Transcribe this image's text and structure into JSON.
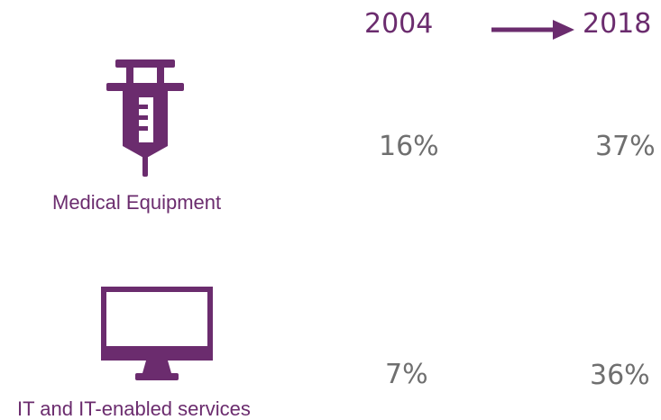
{
  "colors": {
    "accent": "#6b2c6e",
    "value_text": "#6f6f6f"
  },
  "header": {
    "year_from": "2004",
    "year_to": "2018"
  },
  "sectors": [
    {
      "icon": "syringe-icon",
      "label": "Medical Equipment",
      "value_2004": "16%",
      "value_2018": "37%"
    },
    {
      "icon": "monitor-icon",
      "label": "IT and IT-enabled services",
      "value_2004": "7%",
      "value_2018": "36%"
    }
  ]
}
